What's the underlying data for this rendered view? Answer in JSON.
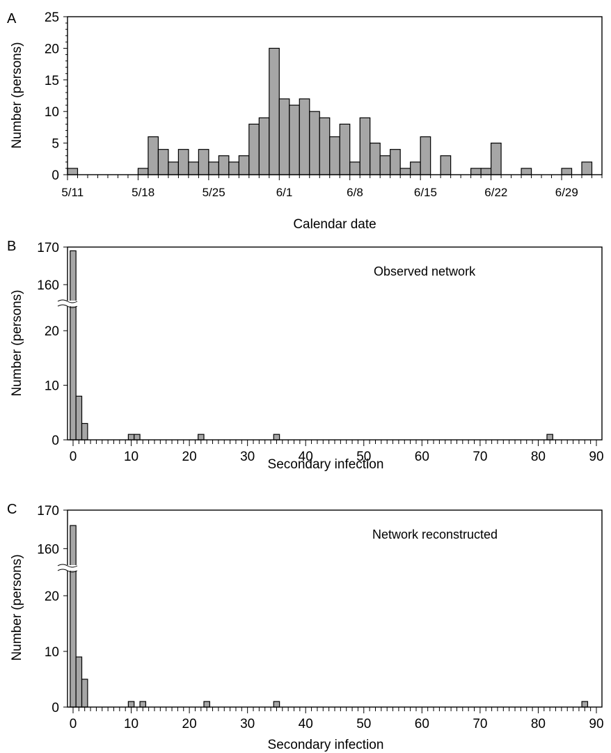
{
  "chart_data": [
    {
      "panel_label": "A",
      "type": "bar",
      "xlabel": "Calendar date",
      "ylabel": "Number (persons)",
      "ylim": [
        0,
        25
      ],
      "yticks": [
        0,
        5,
        10,
        15,
        20,
        25
      ],
      "xtick_labels": [
        "5/11",
        "5/18",
        "5/25",
        "6/1",
        "6/8",
        "6/15",
        "6/22",
        "6/29"
      ],
      "categories": [
        "5/11",
        "5/12",
        "5/13",
        "5/14",
        "5/15",
        "5/16",
        "5/17",
        "5/18",
        "5/19",
        "5/20",
        "5/21",
        "5/22",
        "5/23",
        "5/24",
        "5/25",
        "5/26",
        "5/27",
        "5/28",
        "5/29",
        "5/30",
        "5/31",
        "6/1",
        "6/2",
        "6/3",
        "6/4",
        "6/5",
        "6/6",
        "6/7",
        "6/8",
        "6/9",
        "6/10",
        "6/11",
        "6/12",
        "6/13",
        "6/14",
        "6/15",
        "6/16",
        "6/17",
        "6/18",
        "6/19",
        "6/20",
        "6/21",
        "6/22",
        "6/23",
        "6/24",
        "6/25",
        "6/26",
        "6/27",
        "6/28",
        "6/29",
        "6/30",
        "7/1",
        "7/2"
      ],
      "values": [
        1,
        0,
        0,
        0,
        0,
        0,
        0,
        1,
        6,
        4,
        2,
        4,
        2,
        4,
        2,
        3,
        2,
        3,
        8,
        9,
        20,
        12,
        11,
        12,
        10,
        9,
        6,
        8,
        2,
        9,
        5,
        3,
        4,
        1,
        2,
        6,
        0,
        3,
        0,
        0,
        1,
        1,
        5,
        0,
        0,
        1,
        0,
        0,
        0,
        1,
        0,
        2,
        0
      ],
      "grid": false
    },
    {
      "panel_label": "B",
      "type": "bar",
      "annotation": "Observed network",
      "xlabel": "Secondary infection",
      "ylabel": "Number (persons)",
      "xlim": [
        0,
        90
      ],
      "xticks": [
        0,
        10,
        20,
        30,
        40,
        50,
        60,
        70,
        80,
        90
      ],
      "yticks": [
        0,
        10,
        20,
        160,
        170
      ],
      "y_axis_break": [
        25,
        155
      ],
      "x": [
        0,
        1,
        2,
        10,
        11,
        22,
        35,
        82
      ],
      "values": [
        169,
        8,
        3,
        1,
        1,
        1,
        1,
        1
      ],
      "grid": false
    },
    {
      "panel_label": "C",
      "type": "bar",
      "annotation": "Network reconstructed",
      "xlabel": "Secondary infection",
      "ylabel": "Number (persons)",
      "xlim": [
        0,
        90
      ],
      "xticks": [
        0,
        10,
        20,
        30,
        40,
        50,
        60,
        70,
        80,
        90
      ],
      "yticks": [
        0,
        10,
        20,
        160,
        170
      ],
      "y_axis_break": [
        25,
        155
      ],
      "x": [
        0,
        1,
        2,
        10,
        12,
        23,
        35,
        88
      ],
      "values": [
        166,
        9,
        5,
        1,
        1,
        1,
        1,
        1
      ],
      "grid": false
    }
  ]
}
